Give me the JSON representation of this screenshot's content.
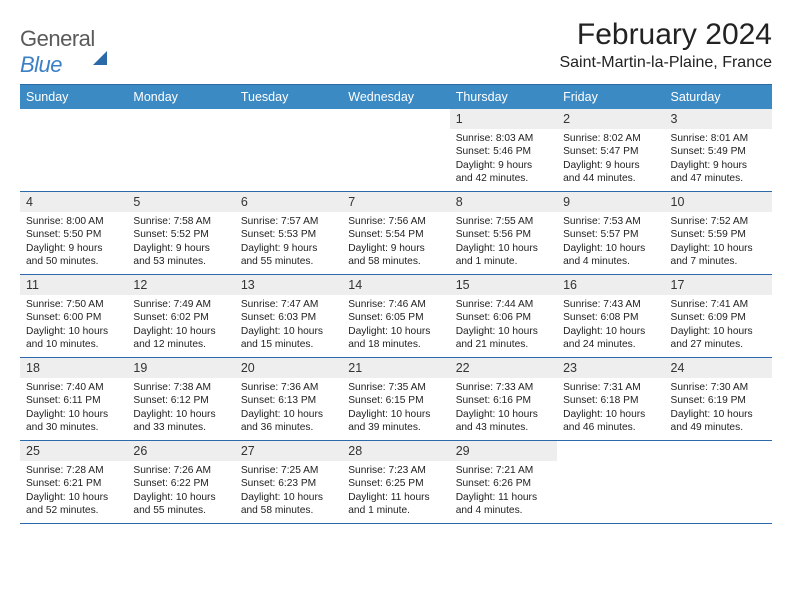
{
  "logo": {
    "text_a": "General",
    "text_b": "Blue"
  },
  "title": "February 2024",
  "location": "Saint-Martin-la-Plaine, France",
  "day_headers": [
    "Sunday",
    "Monday",
    "Tuesday",
    "Wednesday",
    "Thursday",
    "Friday",
    "Saturday"
  ],
  "colors": {
    "header_bg": "#3b8ac4",
    "header_text": "#ffffff",
    "rule": "#2b6aa8",
    "daynum_bg": "#eeeeee",
    "logo_gray": "#5a5a5a",
    "logo_blue": "#3b7fc4"
  },
  "typography": {
    "title_fontsize": 30,
    "location_fontsize": 16,
    "header_fontsize": 12.5,
    "daynum_fontsize": 12.5,
    "body_fontsize": 10.2
  },
  "weeks": [
    [
      null,
      null,
      null,
      null,
      {
        "n": "1",
        "sr": "Sunrise: 8:03 AM",
        "ss": "Sunset: 5:46 PM",
        "dl": "Daylight: 9 hours and 42 minutes."
      },
      {
        "n": "2",
        "sr": "Sunrise: 8:02 AM",
        "ss": "Sunset: 5:47 PM",
        "dl": "Daylight: 9 hours and 44 minutes."
      },
      {
        "n": "3",
        "sr": "Sunrise: 8:01 AM",
        "ss": "Sunset: 5:49 PM",
        "dl": "Daylight: 9 hours and 47 minutes."
      }
    ],
    [
      {
        "n": "4",
        "sr": "Sunrise: 8:00 AM",
        "ss": "Sunset: 5:50 PM",
        "dl": "Daylight: 9 hours and 50 minutes."
      },
      {
        "n": "5",
        "sr": "Sunrise: 7:58 AM",
        "ss": "Sunset: 5:52 PM",
        "dl": "Daylight: 9 hours and 53 minutes."
      },
      {
        "n": "6",
        "sr": "Sunrise: 7:57 AM",
        "ss": "Sunset: 5:53 PM",
        "dl": "Daylight: 9 hours and 55 minutes."
      },
      {
        "n": "7",
        "sr": "Sunrise: 7:56 AM",
        "ss": "Sunset: 5:54 PM",
        "dl": "Daylight: 9 hours and 58 minutes."
      },
      {
        "n": "8",
        "sr": "Sunrise: 7:55 AM",
        "ss": "Sunset: 5:56 PM",
        "dl": "Daylight: 10 hours and 1 minute."
      },
      {
        "n": "9",
        "sr": "Sunrise: 7:53 AM",
        "ss": "Sunset: 5:57 PM",
        "dl": "Daylight: 10 hours and 4 minutes."
      },
      {
        "n": "10",
        "sr": "Sunrise: 7:52 AM",
        "ss": "Sunset: 5:59 PM",
        "dl": "Daylight: 10 hours and 7 minutes."
      }
    ],
    [
      {
        "n": "11",
        "sr": "Sunrise: 7:50 AM",
        "ss": "Sunset: 6:00 PM",
        "dl": "Daylight: 10 hours and 10 minutes."
      },
      {
        "n": "12",
        "sr": "Sunrise: 7:49 AM",
        "ss": "Sunset: 6:02 PM",
        "dl": "Daylight: 10 hours and 12 minutes."
      },
      {
        "n": "13",
        "sr": "Sunrise: 7:47 AM",
        "ss": "Sunset: 6:03 PM",
        "dl": "Daylight: 10 hours and 15 minutes."
      },
      {
        "n": "14",
        "sr": "Sunrise: 7:46 AM",
        "ss": "Sunset: 6:05 PM",
        "dl": "Daylight: 10 hours and 18 minutes."
      },
      {
        "n": "15",
        "sr": "Sunrise: 7:44 AM",
        "ss": "Sunset: 6:06 PM",
        "dl": "Daylight: 10 hours and 21 minutes."
      },
      {
        "n": "16",
        "sr": "Sunrise: 7:43 AM",
        "ss": "Sunset: 6:08 PM",
        "dl": "Daylight: 10 hours and 24 minutes."
      },
      {
        "n": "17",
        "sr": "Sunrise: 7:41 AM",
        "ss": "Sunset: 6:09 PM",
        "dl": "Daylight: 10 hours and 27 minutes."
      }
    ],
    [
      {
        "n": "18",
        "sr": "Sunrise: 7:40 AM",
        "ss": "Sunset: 6:11 PM",
        "dl": "Daylight: 10 hours and 30 minutes."
      },
      {
        "n": "19",
        "sr": "Sunrise: 7:38 AM",
        "ss": "Sunset: 6:12 PM",
        "dl": "Daylight: 10 hours and 33 minutes."
      },
      {
        "n": "20",
        "sr": "Sunrise: 7:36 AM",
        "ss": "Sunset: 6:13 PM",
        "dl": "Daylight: 10 hours and 36 minutes."
      },
      {
        "n": "21",
        "sr": "Sunrise: 7:35 AM",
        "ss": "Sunset: 6:15 PM",
        "dl": "Daylight: 10 hours and 39 minutes."
      },
      {
        "n": "22",
        "sr": "Sunrise: 7:33 AM",
        "ss": "Sunset: 6:16 PM",
        "dl": "Daylight: 10 hours and 43 minutes."
      },
      {
        "n": "23",
        "sr": "Sunrise: 7:31 AM",
        "ss": "Sunset: 6:18 PM",
        "dl": "Daylight: 10 hours and 46 minutes."
      },
      {
        "n": "24",
        "sr": "Sunrise: 7:30 AM",
        "ss": "Sunset: 6:19 PM",
        "dl": "Daylight: 10 hours and 49 minutes."
      }
    ],
    [
      {
        "n": "25",
        "sr": "Sunrise: 7:28 AM",
        "ss": "Sunset: 6:21 PM",
        "dl": "Daylight: 10 hours and 52 minutes."
      },
      {
        "n": "26",
        "sr": "Sunrise: 7:26 AM",
        "ss": "Sunset: 6:22 PM",
        "dl": "Daylight: 10 hours and 55 minutes."
      },
      {
        "n": "27",
        "sr": "Sunrise: 7:25 AM",
        "ss": "Sunset: 6:23 PM",
        "dl": "Daylight: 10 hours and 58 minutes."
      },
      {
        "n": "28",
        "sr": "Sunrise: 7:23 AM",
        "ss": "Sunset: 6:25 PM",
        "dl": "Daylight: 11 hours and 1 minute."
      },
      {
        "n": "29",
        "sr": "Sunrise: 7:21 AM",
        "ss": "Sunset: 6:26 PM",
        "dl": "Daylight: 11 hours and 4 minutes."
      },
      null,
      null
    ]
  ]
}
